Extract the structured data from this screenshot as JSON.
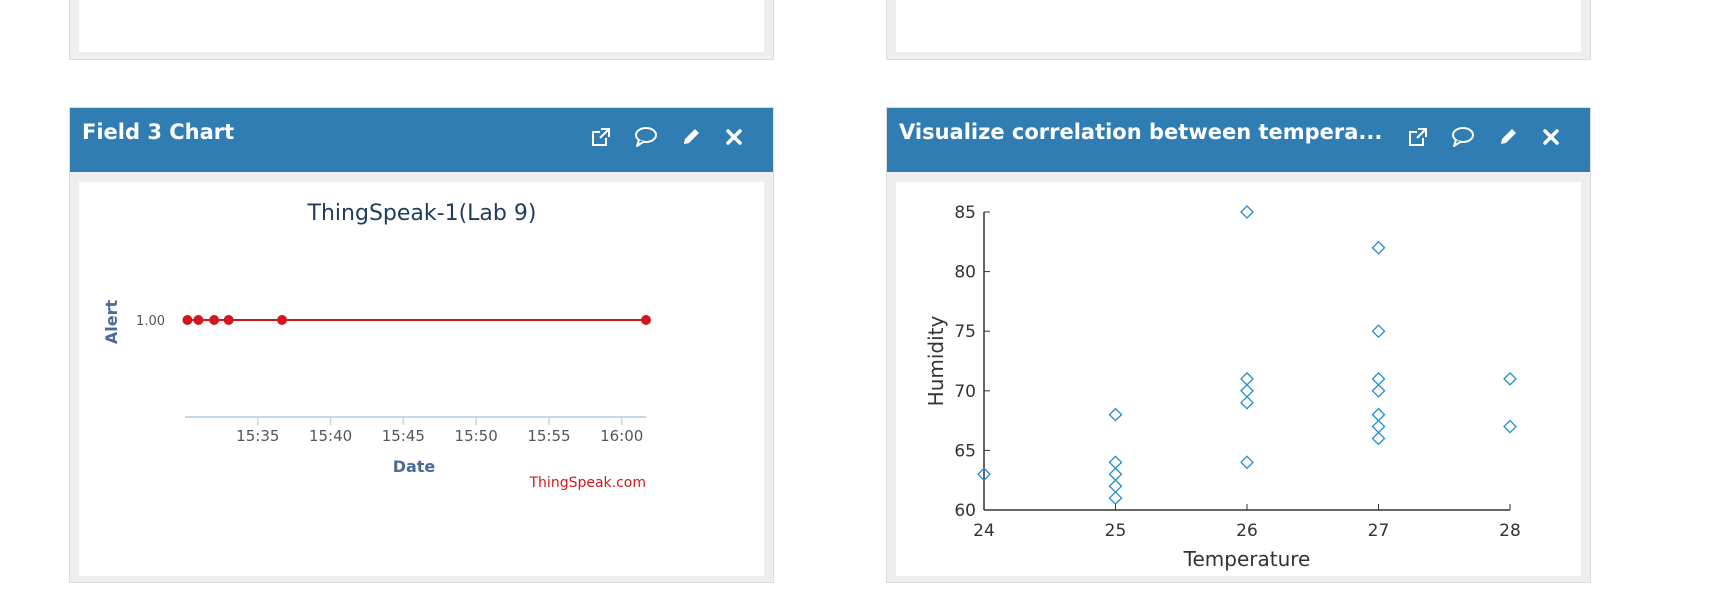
{
  "panels": [
    {
      "title": "Field 3 Chart",
      "actions": [
        "external-link-icon",
        "comment-icon",
        "pencil-icon",
        "close-icon"
      ]
    },
    {
      "title": "Visualize correlation between tempera...",
      "actions": [
        "external-link-icon",
        "comment-icon",
        "pencil-icon",
        "close-icon"
      ]
    }
  ],
  "colors": {
    "header_bg": "#2f7db3",
    "line_series": "#d0181c",
    "scatter_marker": "#1f8fd0"
  },
  "chart_data": [
    {
      "type": "line",
      "title": "ThingSpeak-1(Lab 9)",
      "xlabel": "Date",
      "ylabel": "Alert",
      "credit": "ThingSpeak.com",
      "x": [
        "15:30:10",
        "15:30:55",
        "15:32:00",
        "15:33:00",
        "15:36:40",
        "16:01:40"
      ],
      "values": [
        1.0,
        1.0,
        1.0,
        1.0,
        1.0,
        1.0
      ],
      "y_tick_labels": [
        "1.00"
      ],
      "x_tick_labels": [
        "15:35",
        "15:40",
        "15:45",
        "15:50",
        "15:55",
        "16:00"
      ],
      "grid": false
    },
    {
      "type": "scatter",
      "xlabel": "Temperature",
      "ylabel": "Humidity",
      "xlim": [
        24,
        28
      ],
      "ylim": [
        60,
        85
      ],
      "x_ticks": [
        "24",
        "25",
        "26",
        "27",
        "28"
      ],
      "y_ticks": [
        "60",
        "65",
        "70",
        "75",
        "80",
        "85"
      ],
      "points": [
        [
          24,
          63
        ],
        [
          25,
          68
        ],
        [
          25,
          64
        ],
        [
          25,
          63
        ],
        [
          25,
          62
        ],
        [
          25,
          61
        ],
        [
          26,
          85
        ],
        [
          26,
          71
        ],
        [
          26,
          70
        ],
        [
          26,
          69
        ],
        [
          26,
          64
        ],
        [
          27,
          82
        ],
        [
          27,
          75
        ],
        [
          27,
          71
        ],
        [
          27,
          70
        ],
        [
          27,
          68
        ],
        [
          27,
          67
        ],
        [
          27,
          66
        ],
        [
          28,
          71
        ],
        [
          28,
          67
        ]
      ],
      "grid": false
    }
  ]
}
